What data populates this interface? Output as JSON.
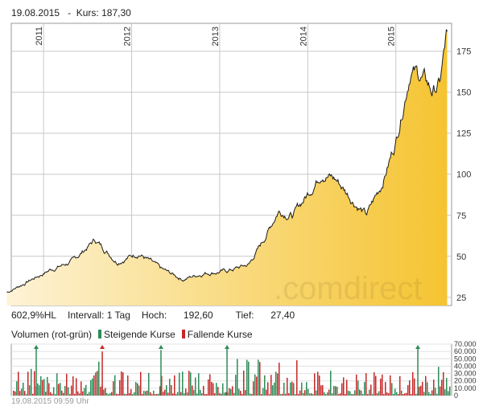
{
  "header": {
    "date": "19.08.2015",
    "sep": "-",
    "kurs_label": "Kurs:",
    "kurs_value": "187,30"
  },
  "stats": {
    "performance": "602,9%HL",
    "interval": "Intervall: 1 Tag",
    "hoch_label": "Hoch:",
    "hoch_value": "192,60",
    "tief_label": "Tief:",
    "tief_value": "27,40"
  },
  "volume_legend": {
    "title": "Volumen (rot-grün)",
    "up": "Steigende Kurse",
    "down": "Fallende Kurse",
    "up_color": "#2e8b57",
    "down_color": "#c62828"
  },
  "watermark": ".comdirect",
  "footer": "19.08.2015 09:59 Uhr",
  "colors": {
    "area_top": "#f5c431",
    "area_bottom": "#fdf3d6",
    "line": "#1a1a1a",
    "grid": "#c8c8c8"
  },
  "chart_data": [
    {
      "type": "area",
      "x_ticks": [
        "2011",
        "2012",
        "2013",
        "2014",
        "2015"
      ],
      "y_ticks": [
        25,
        50,
        75,
        100,
        125,
        150,
        175
      ],
      "ylim": [
        20,
        192
      ],
      "x": [
        "2010-08",
        "2010-11",
        "2011-02",
        "2011-05",
        "2011-08",
        "2011-11",
        "2012-02",
        "2012-05",
        "2012-08",
        "2012-11",
        "2013-02",
        "2013-05",
        "2013-07",
        "2013-09",
        "2013-11",
        "2014-01",
        "2014-03",
        "2014-05",
        "2014-07",
        "2014-09",
        "2014-11",
        "2015-01",
        "2015-03",
        "2015-05",
        "2015-06",
        "2015-07",
        "2015-08"
      ],
      "values": [
        28,
        35,
        42,
        47,
        60,
        47,
        52,
        42,
        36,
        40,
        41,
        45,
        60,
        78,
        75,
        88,
        102,
        96,
        85,
        75,
        93,
        120,
        165,
        157,
        150,
        155,
        187
      ],
      "high": 192.6,
      "low": 27.4
    },
    {
      "type": "bar",
      "title": "Volumen (rot-grün)",
      "y_ticks": [
        "70.000",
        "60.000",
        "50.000",
        "40.000",
        "30.000",
        "20.000",
        "10.000",
        "0"
      ],
      "ylim": [
        0,
        70000
      ],
      "series": [
        {
          "name": "Steigende Kurse"
        },
        {
          "name": "Fallende Kurse"
        }
      ],
      "peaks": [
        {
          "x": "2010-12",
          "value": 64000,
          "dir": "up"
        },
        {
          "x": "2011-09",
          "value": 60000,
          "dir": "down"
        },
        {
          "x": "2012-05",
          "value": 62000,
          "dir": "up"
        },
        {
          "x": "2013-02",
          "value": 65000,
          "dir": "up"
        },
        {
          "x": "2015-04",
          "value": 66000,
          "dir": "up"
        }
      ]
    }
  ]
}
